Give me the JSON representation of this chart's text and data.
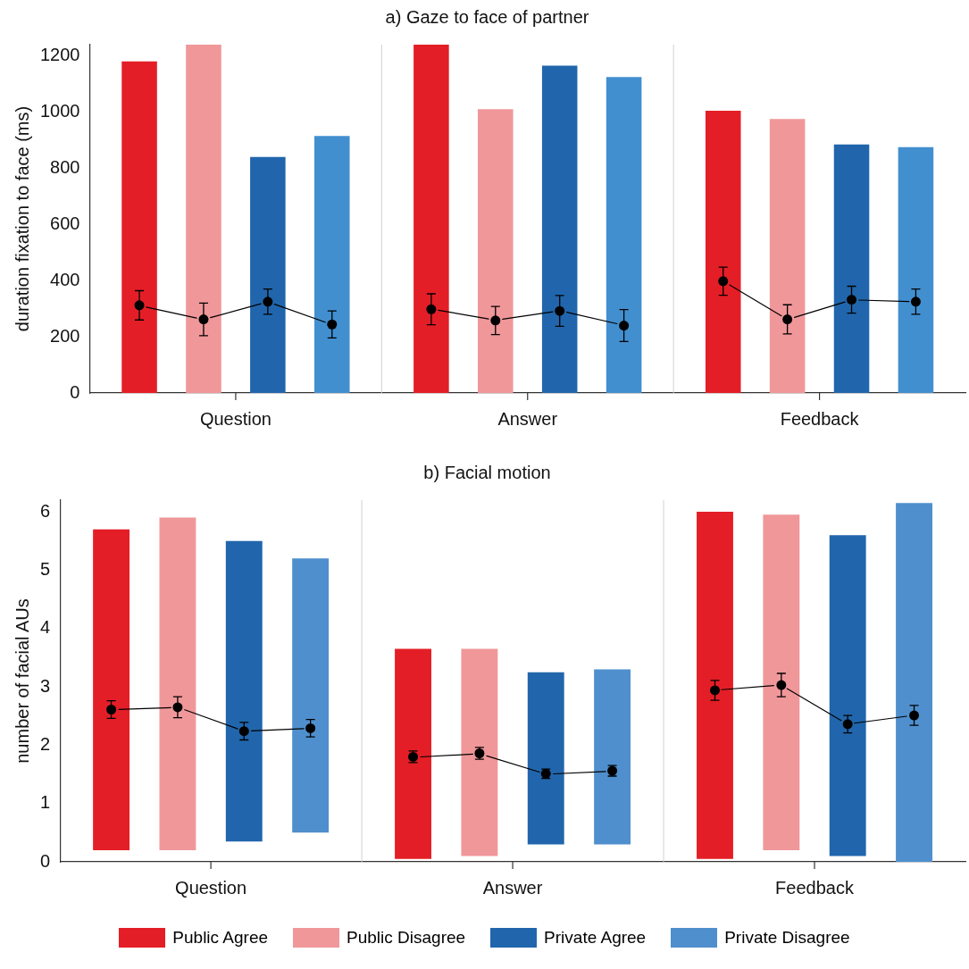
{
  "chart_data": [
    {
      "type": "bar",
      "title": "a) Gaze to face of partner",
      "ylabel": "duration fixation to face (ms)",
      "categories": [
        "Question",
        "Answer",
        "Feedback"
      ],
      "ylim": [
        0,
        1240
      ],
      "yticks": [
        0,
        200,
        400,
        600,
        800,
        1000,
        1200
      ],
      "grid": "x",
      "legend": false,
      "series": [
        {
          "color": "#e41e26",
          "base": [
            0,
            0,
            0
          ],
          "values": [
            1180,
            1240,
            1005
          ]
        },
        {
          "color": "#f0979a",
          "base": [
            0,
            0,
            0
          ],
          "values": [
            1240,
            1010,
            975
          ]
        },
        {
          "color": "#2166ac",
          "base": [
            0,
            0,
            0
          ],
          "values": [
            840,
            1165,
            885
          ]
        },
        {
          "color": "#428fd0",
          "base": [
            0,
            0,
            0
          ],
          "values": [
            915,
            1125,
            875
          ]
        },
        {
          "type": "scatter",
          "color": "#000000",
          "marker": "circle",
          "line_style": "solid",
          "values": [
            312,
            298,
            398
          ],
          "errors": [
            52,
            55,
            50
          ]
        },
        {
          "type": "scatter",
          "color": "#000000",
          "marker": "circle",
          "line_style": "solid",
          "values": [
            262,
            258,
            262
          ],
          "errors": [
            58,
            50,
            52
          ]
        },
        {
          "type": "scatter",
          "color": "#000000",
          "marker": "circle",
          "line_style": "solid",
          "values": [
            325,
            292,
            332
          ],
          "errors": [
            45,
            55,
            48
          ]
        },
        {
          "type": "scatter",
          "color": "#000000",
          "marker": "circle",
          "line_style": "solid",
          "values": [
            244,
            240,
            325
          ],
          "errors": [
            48,
            57,
            45
          ]
        }
      ]
    },
    {
      "type": "bar",
      "title": "b) Facial motion",
      "ylabel": "number of facial AUs",
      "categories": [
        "Question",
        "Answer",
        "Feedback"
      ],
      "ylim": [
        0,
        6.2
      ],
      "yticks": [
        0,
        1,
        2,
        3,
        4,
        5,
        6
      ],
      "grid": "x",
      "legend": "bottom",
      "series": [
        {
          "name": "Public Agree",
          "color": "#e41e26",
          "base": [
            0.2,
            0.05,
            0.05
          ],
          "values": [
            5.5,
            3.6,
            5.95
          ]
        },
        {
          "name": "Public Disagree",
          "color": "#f0979a",
          "base": [
            0.2,
            0.1,
            0.2
          ],
          "values": [
            5.7,
            3.55,
            5.75
          ]
        },
        {
          "name": "Private Agree",
          "color": "#2166ac",
          "base": [
            0.35,
            0.3,
            0.1
          ],
          "values": [
            5.15,
            2.95,
            5.5
          ]
        },
        {
          "name": "Private Disagree",
          "color": "#4f8fcd",
          "base": [
            0.5,
            0.3,
            0
          ],
          "values": [
            4.7,
            3.0,
            6.15
          ]
        },
        {
          "type": "scatter",
          "color": "#000000",
          "marker": "circle",
          "line_style": "solid",
          "values": [
            2.61,
            1.8,
            2.94
          ],
          "errors": [
            0.15,
            0.1,
            0.17
          ]
        },
        {
          "type": "scatter",
          "color": "#000000",
          "marker": "circle",
          "line_style": "solid",
          "values": [
            2.65,
            1.86,
            3.03
          ],
          "errors": [
            0.18,
            0.1,
            0.2
          ]
        },
        {
          "type": "scatter",
          "color": "#000000",
          "marker": "circle",
          "line_style": "solid",
          "values": [
            2.24,
            1.51,
            2.36
          ],
          "errors": [
            0.15,
            0.08,
            0.15
          ]
        },
        {
          "type": "scatter",
          "color": "#000000",
          "marker": "circle",
          "line_style": "solid",
          "values": [
            2.29,
            1.56,
            2.51
          ],
          "errors": [
            0.15,
            0.09,
            0.17
          ]
        }
      ]
    }
  ]
}
